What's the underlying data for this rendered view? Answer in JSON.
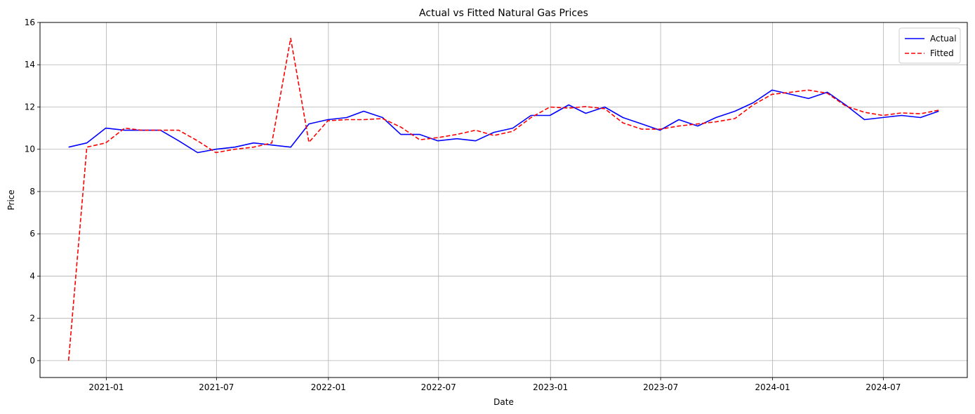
{
  "chart_data": {
    "type": "line",
    "title": "Actual vs Fitted Natural Gas Prices",
    "xlabel": "Date",
    "ylabel": "Price",
    "x": [
      "2020-10-31",
      "2020-11-30",
      "2020-12-31",
      "2021-01-31",
      "2021-02-28",
      "2021-03-31",
      "2021-04-30",
      "2021-05-31",
      "2021-06-30",
      "2021-07-31",
      "2021-08-31",
      "2021-09-30",
      "2021-10-31",
      "2021-11-30",
      "2021-12-31",
      "2022-01-31",
      "2022-02-28",
      "2022-03-31",
      "2022-04-30",
      "2022-05-31",
      "2022-06-30",
      "2022-07-31",
      "2022-08-31",
      "2022-09-30",
      "2022-10-31",
      "2022-11-30",
      "2022-12-31",
      "2023-01-31",
      "2023-02-28",
      "2023-03-31",
      "2023-04-30",
      "2023-05-31",
      "2023-06-30",
      "2023-07-31",
      "2023-08-31",
      "2023-09-30",
      "2023-10-31",
      "2023-11-30",
      "2023-12-31",
      "2024-01-31",
      "2024-02-29",
      "2024-03-31",
      "2024-04-30",
      "2024-05-31",
      "2024-06-30",
      "2024-07-31",
      "2024-08-31",
      "2024-09-30"
    ],
    "series": [
      {
        "name": "Actual",
        "color": "#0000ff",
        "style": "solid",
        "values": [
          10.1,
          10.3,
          11.0,
          10.9,
          10.9,
          10.9,
          10.4,
          9.84,
          10.0,
          10.1,
          10.3,
          10.2,
          10.1,
          11.2,
          11.4,
          11.5,
          11.8,
          11.5,
          10.7,
          10.7,
          10.4,
          10.5,
          10.4,
          10.8,
          11.0,
          11.6,
          11.6,
          12.1,
          11.7,
          12.0,
          11.5,
          11.2,
          10.9,
          11.4,
          11.1,
          11.5,
          11.8,
          12.2,
          12.8,
          12.6,
          12.4,
          12.7,
          12.1,
          11.4,
          11.5,
          11.6,
          11.5,
          11.8
        ]
      },
      {
        "name": "Fitted",
        "color": "#ff0000",
        "style": "dashed",
        "values": [
          0.0,
          10.1,
          10.3,
          11.0,
          10.9,
          10.9,
          10.9,
          10.4,
          9.84,
          10.0,
          10.1,
          10.3,
          15.25,
          10.33,
          11.35,
          11.4,
          11.4,
          11.45,
          11.05,
          10.45,
          10.55,
          10.7,
          10.9,
          10.65,
          10.85,
          11.5,
          12.0,
          11.95,
          12.02,
          11.92,
          11.25,
          10.95,
          10.95,
          11.1,
          11.2,
          11.3,
          11.45,
          12.1,
          12.6,
          12.7,
          12.8,
          12.65,
          12.05,
          11.75,
          11.6,
          11.72,
          11.68,
          11.85
        ]
      }
    ],
    "xlim": [
      "2020-09-14",
      "2024-11-16"
    ],
    "ylim": [
      -0.8,
      16.0
    ],
    "x_ticks": [
      "2021-01-01",
      "2021-07-01",
      "2022-01-01",
      "2022-07-01",
      "2023-01-01",
      "2023-07-01",
      "2024-01-01",
      "2024-07-01"
    ],
    "x_tick_labels": [
      "2021-01",
      "2021-07",
      "2022-01",
      "2022-07",
      "2023-01",
      "2023-07",
      "2024-01",
      "2024-07"
    ],
    "y_ticks": [
      0,
      2,
      4,
      6,
      8,
      10,
      12,
      14,
      16
    ],
    "y_tick_labels": [
      "0",
      "2",
      "4",
      "6",
      "8",
      "10",
      "12",
      "14",
      "16"
    ],
    "grid": true,
    "legend_position": "top-right"
  }
}
